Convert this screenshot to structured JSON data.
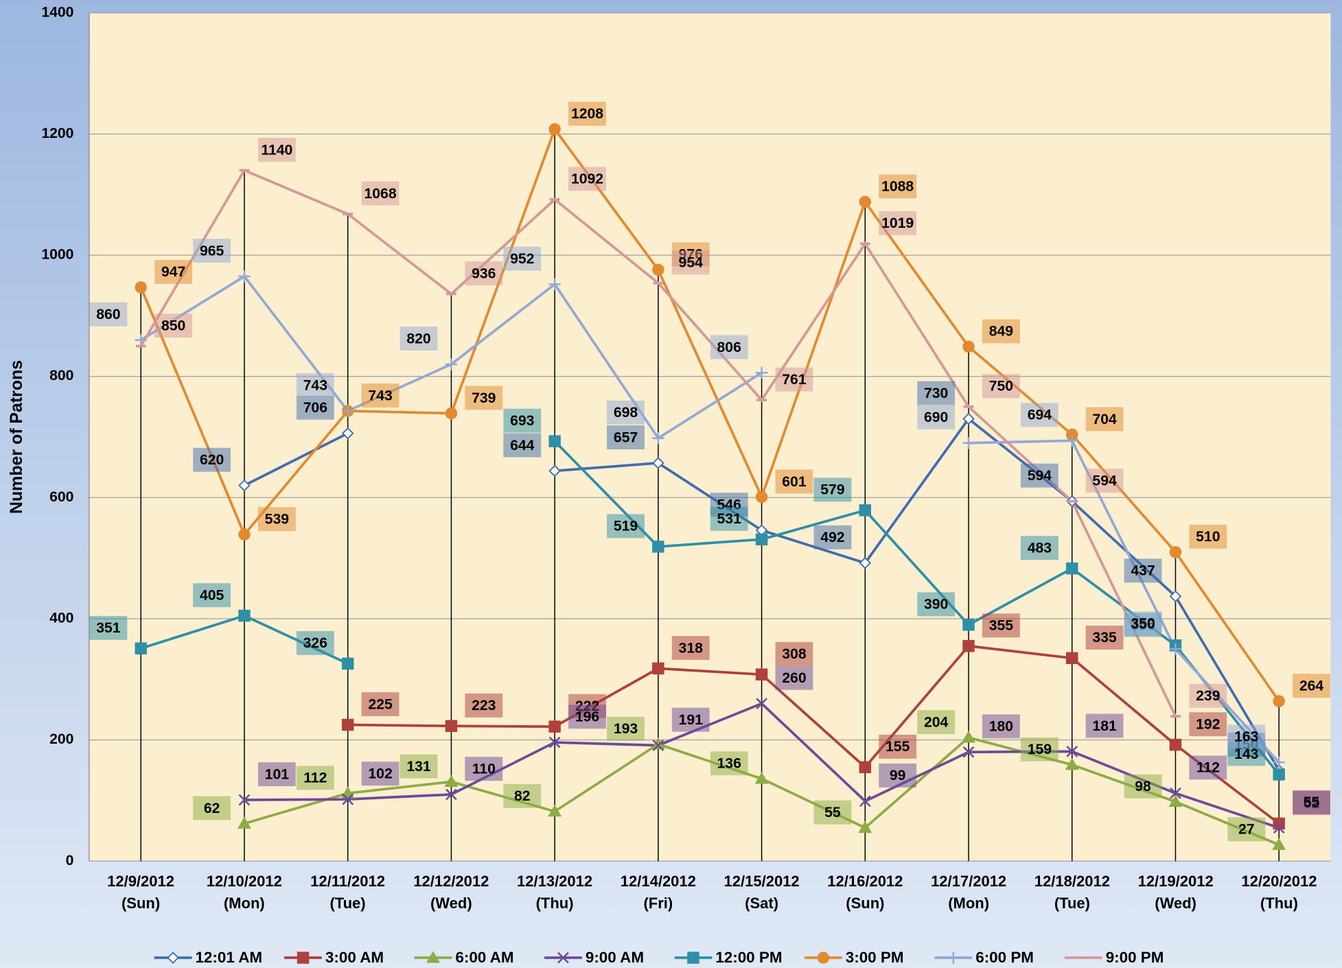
{
  "chart_data": {
    "type": "line",
    "y_label": "Number of Patrons",
    "categories": [
      "12/9/2012 (Sun)",
      "12/10/2012 (Mon)",
      "12/11/2012 (Tue)",
      "12/12/2012 (Wed)",
      "12/13/2012 (Thu)",
      "12/14/2012 (Fri)",
      "12/15/2012 (Sat)",
      "12/16/2012 (Sun)",
      "12/17/2012 (Mon)",
      "12/18/2012 (Tue)",
      "12/19/2012 (Wed)",
      "12/20/2012 (Thu)"
    ],
    "series": [
      {
        "name": "12:01 AM",
        "color": "#3f6db0",
        "marker": "diamond",
        "values": [
          null,
          620,
          706,
          null,
          644,
          657,
          546,
          492,
          730,
          594,
          437,
          150
        ]
      },
      {
        "name": "3:00 AM",
        "color": "#b0403c",
        "marker": "square",
        "values": [
          null,
          null,
          225,
          223,
          222,
          318,
          308,
          155,
          355,
          335,
          192,
          62
        ]
      },
      {
        "name": "6:00 AM",
        "color": "#8cad45",
        "marker": "triangle",
        "values": [
          null,
          62,
          112,
          131,
          82,
          193,
          136,
          55,
          204,
          159,
          98,
          27
        ]
      },
      {
        "name": "9:00 AM",
        "color": "#6d4a9a",
        "marker": "x",
        "values": [
          null,
          101,
          102,
          110,
          196,
          191,
          260,
          99,
          180,
          181,
          112,
          55
        ]
      },
      {
        "name": "12:00 PM",
        "color": "#2e8fa6",
        "marker": "square",
        "values": [
          351,
          405,
          326,
          null,
          693,
          519,
          531,
          579,
          390,
          483,
          356,
          143
        ]
      },
      {
        "name": "3:00 PM",
        "color": "#e3892f",
        "marker": "circle",
        "values": [
          947,
          539,
          743,
          739,
          1208,
          976,
          601,
          1088,
          849,
          704,
          510,
          264
        ]
      },
      {
        "name": "6:00 PM",
        "color": "#92a9d6",
        "marker": "plus",
        "values": [
          860,
          965,
          743,
          820,
          952,
          698,
          806,
          null,
          690,
          694,
          350,
          163
        ]
      },
      {
        "name": "9:00 PM",
        "color": "#d49898",
        "marker": "dash",
        "values": [
          850,
          1140,
          1068,
          936,
          1092,
          954,
          761,
          1019,
          750,
          594,
          239,
          null
        ]
      }
    ],
    "ylim": [
      0,
      1400
    ],
    "yticks": [
      0,
      200,
      400,
      600,
      800,
      1000,
      1200,
      1400
    ],
    "grid": true
  }
}
